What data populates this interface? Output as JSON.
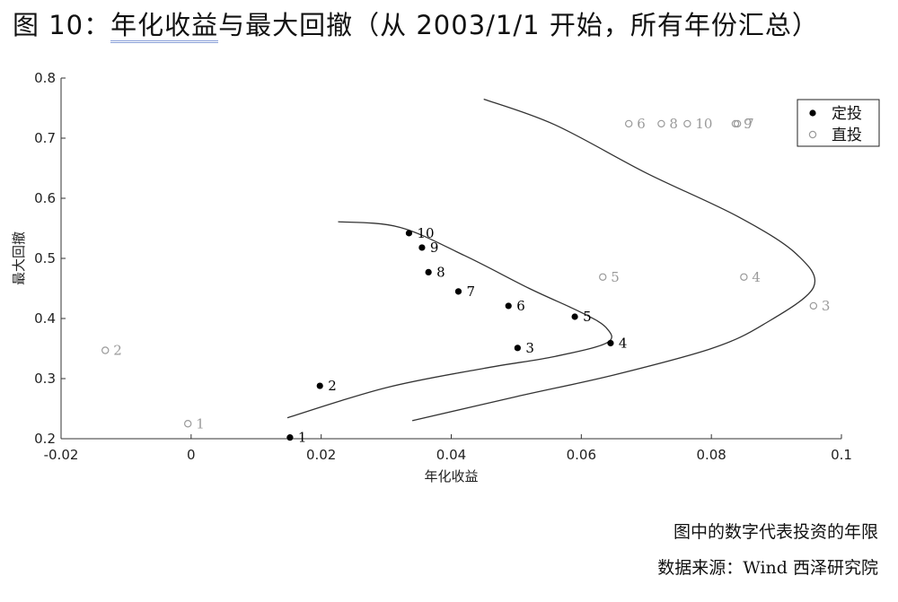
{
  "figure": {
    "title_prefix": "图 10：",
    "title_main": "年化收益",
    "title_rest": "与最大回撤（从 2003/1/1 开始，所有年份汇总）",
    "note_line1": "图中的数字代表投资的年限",
    "note_line2": "数据来源：Wind  西泽研究院"
  },
  "colors": {
    "dingtou": "#000000",
    "zhitou": "#9a9a9a",
    "curve": "#333333",
    "axis": "#333333"
  },
  "chart_data": {
    "type": "scatter",
    "xlabel": "年化收益",
    "ylabel": "最大回撤",
    "xlim": [
      -0.02,
      0.1
    ],
    "ylim": [
      0.2,
      0.8
    ],
    "x_ticks": [
      -0.02,
      0,
      0.02,
      0.04,
      0.06,
      0.08,
      0.1
    ],
    "x_tick_labels": [
      "-0.02",
      "0",
      "0.02",
      "0.04",
      "0.06",
      "0.08",
      "0.1"
    ],
    "y_ticks": [
      0.2,
      0.3,
      0.4,
      0.5,
      0.6,
      0.7,
      0.8
    ],
    "y_tick_labels": [
      "0.2",
      "0.3",
      "0.4",
      "0.5",
      "0.6",
      "0.7",
      "0.8"
    ],
    "grid": false,
    "legend_position": "top-right",
    "series": [
      {
        "name": "定投",
        "marker": "filled-circle",
        "points": [
          {
            "label": "1",
            "x": 0.0152,
            "y": 0.202
          },
          {
            "label": "2",
            "x": 0.0198,
            "y": 0.288
          },
          {
            "label": "3",
            "x": 0.0502,
            "y": 0.351
          },
          {
            "label": "4",
            "x": 0.0645,
            "y": 0.359
          },
          {
            "label": "5",
            "x": 0.059,
            "y": 0.403
          },
          {
            "label": "6",
            "x": 0.0488,
            "y": 0.421
          },
          {
            "label": "7",
            "x": 0.0411,
            "y": 0.445
          },
          {
            "label": "8",
            "x": 0.0365,
            "y": 0.477
          },
          {
            "label": "9",
            "x": 0.0355,
            "y": 0.518
          },
          {
            "label": "10",
            "x": 0.0335,
            "y": 0.542
          }
        ]
      },
      {
        "name": "直投",
        "marker": "open-circle",
        "points": [
          {
            "label": "1",
            "x": -0.0005,
            "y": 0.225
          },
          {
            "label": "2",
            "x": -0.0132,
            "y": 0.347
          },
          {
            "label": "3",
            "x": 0.0957,
            "y": 0.421
          },
          {
            "label": "4",
            "x": 0.085,
            "y": 0.469
          },
          {
            "label": "5",
            "x": 0.0633,
            "y": 0.469
          },
          {
            "label": "6",
            "x": 0.0673,
            "y": 0.724
          },
          {
            "label": "7",
            "x": 0.084,
            "y": 0.724
          },
          {
            "label": "8",
            "x": 0.0723,
            "y": 0.724
          },
          {
            "label": "9",
            "x": 0.0837,
            "y": 0.724
          },
          {
            "label": "10",
            "x": 0.0763,
            "y": 0.724
          }
        ]
      }
    ],
    "fitted_curves": [
      {
        "for_series": "定投",
        "points": [
          [
            0.0148,
            0.235
          ],
          [
            0.03,
            0.285
          ],
          [
            0.045,
            0.317
          ],
          [
            0.056,
            0.337
          ],
          [
            0.064,
            0.36
          ],
          [
            0.0638,
            0.385
          ],
          [
            0.06,
            0.41
          ],
          [
            0.052,
            0.45
          ],
          [
            0.042,
            0.505
          ],
          [
            0.032,
            0.552
          ],
          [
            0.0226,
            0.561
          ]
        ]
      },
      {
        "for_series": "直投",
        "points": [
          [
            0.034,
            0.23
          ],
          [
            0.05,
            0.27
          ],
          [
            0.065,
            0.306
          ],
          [
            0.08,
            0.35
          ],
          [
            0.088,
            0.39
          ],
          [
            0.0957,
            0.452
          ],
          [
            0.093,
            0.508
          ],
          [
            0.084,
            0.57
          ],
          [
            0.07,
            0.642
          ],
          [
            0.056,
            0.722
          ],
          [
            0.045,
            0.765
          ]
        ]
      }
    ]
  }
}
